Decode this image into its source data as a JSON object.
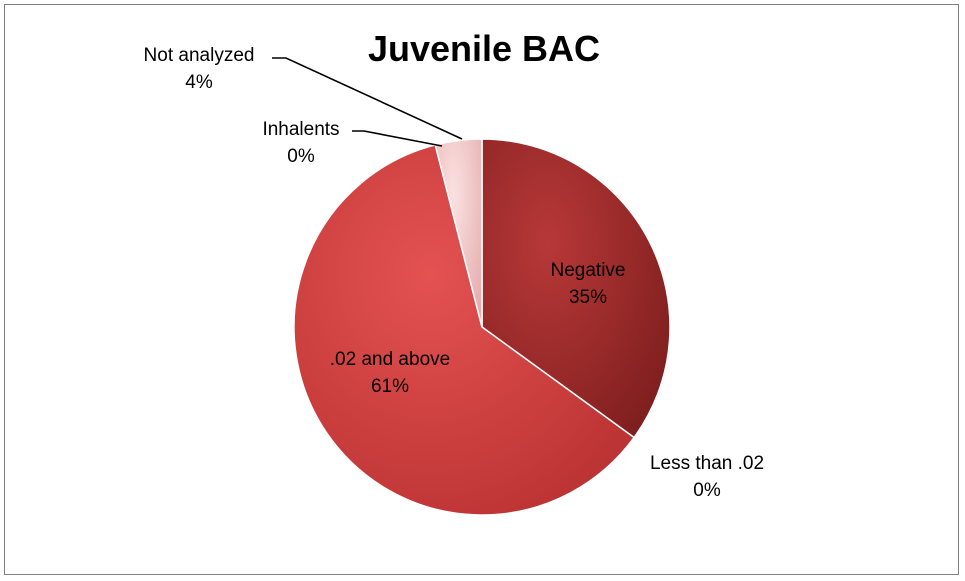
{
  "chart_data": {
    "type": "pie",
    "title": "Juvenile BAC",
    "slices": [
      {
        "label": "Negative",
        "value": 35,
        "pct_label": "35%",
        "color": "#a32c2c"
      },
      {
        "label": "Less than .02",
        "value": 0,
        "pct_label": "0%",
        "color": "#c23a3a"
      },
      {
        "label": ".02 and above",
        "value": 61,
        "pct_label": "61%",
        "color": "#d64545"
      },
      {
        "label": "Inhalents",
        "value": 0,
        "pct_label": "0%",
        "color": "#e69a9a"
      },
      {
        "label": "Not analyzed",
        "value": 4,
        "pct_label": "4%",
        "color": "#efc4c4"
      }
    ],
    "legend": "none"
  }
}
